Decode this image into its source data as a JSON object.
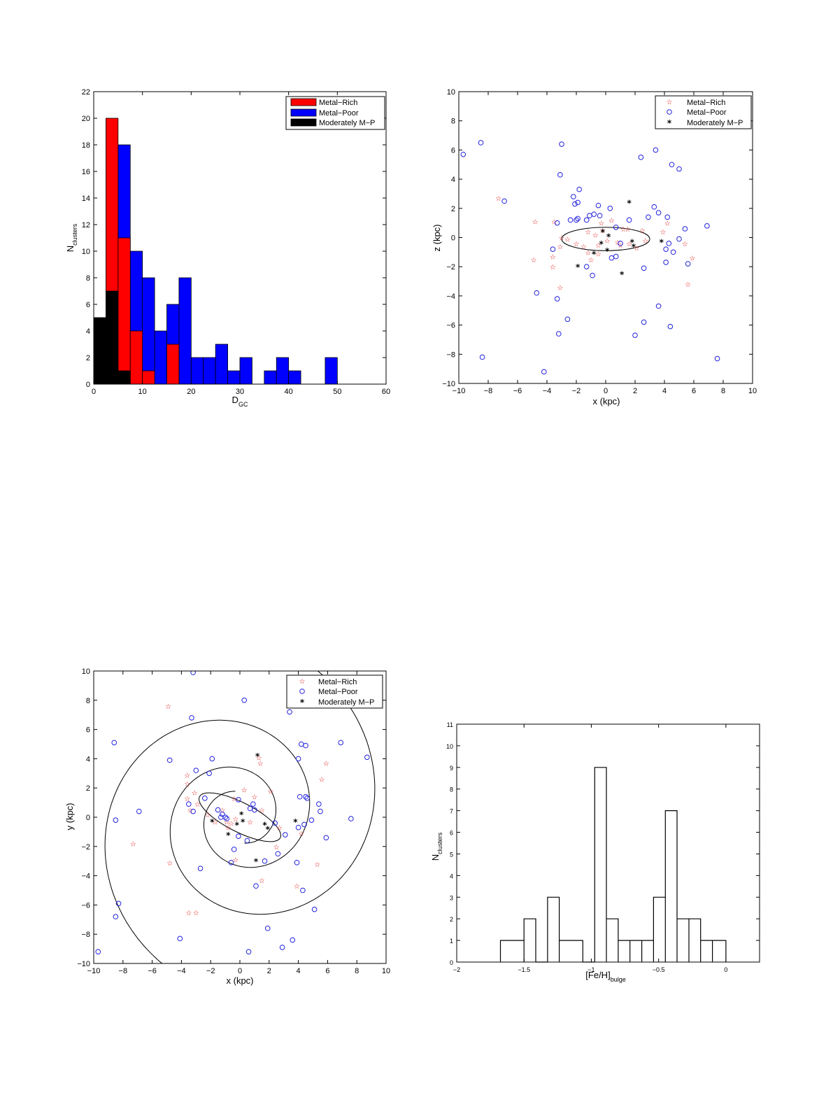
{
  "colors": {
    "metal_rich": "#ff0000",
    "metal_poor": "#0000ff",
    "moderate": "#000000",
    "star_red": "#e01010",
    "circle_blue": "#2222dd"
  },
  "chart_data": [
    {
      "type": "bar",
      "stacked_overlay": true,
      "xlabel": "D",
      "xlabel_sub": "GC",
      "ylabel": "N",
      "ylabel_sub": "clusters",
      "xlim": [
        0,
        60
      ],
      "ylim": [
        0,
        22
      ],
      "xticks": [
        0,
        10,
        20,
        30,
        40,
        50,
        60
      ],
      "yticks": [
        0,
        2,
        4,
        6,
        8,
        10,
        12,
        14,
        16,
        18,
        20,
        22
      ],
      "bin_width": 2.5,
      "legend": [
        "Metal−Rich",
        "Metal−Poor",
        "Moderately M−P"
      ],
      "legend_position": "top-right",
      "series": [
        {
          "name": "Metal−Poor",
          "color": "#0000ff",
          "bins": [
            [
              5,
              18
            ],
            [
              7.5,
              10
            ],
            [
              10,
              8
            ],
            [
              12.5,
              4
            ],
            [
              15,
              6
            ],
            [
              17.5,
              8
            ],
            [
              20,
              2
            ],
            [
              22.5,
              2
            ],
            [
              25,
              3
            ],
            [
              27.5,
              1
            ],
            [
              30,
              2
            ],
            [
              35,
              1
            ],
            [
              37.5,
              2
            ],
            [
              40,
              1
            ],
            [
              47.5,
              2
            ]
          ]
        },
        {
          "name": "Metal−Rich",
          "color": "#ff0000",
          "bins": [
            [
              0,
              5
            ],
            [
              2.5,
              20
            ],
            [
              5,
              11
            ],
            [
              7.5,
              4
            ],
            [
              10,
              1
            ],
            [
              15,
              3
            ]
          ]
        },
        {
          "name": "Moderately M−P",
          "color": "#000000",
          "bins": [
            [
              0,
              5
            ],
            [
              2.5,
              7
            ],
            [
              5,
              1
            ]
          ]
        }
      ]
    },
    {
      "type": "scatter",
      "xlabel": "x (kpc)",
      "ylabel": "z (kpc)",
      "xlim": [
        -10,
        10
      ],
      "ylim": [
        -10,
        10
      ],
      "xticks": [
        -10,
        -8,
        -6,
        -4,
        -2,
        0,
        2,
        4,
        6,
        8,
        10
      ],
      "yticks": [
        -10,
        -8,
        -6,
        -4,
        -2,
        0,
        2,
        4,
        6,
        8,
        10
      ],
      "legend": [
        "Metal−Rich",
        "Metal−Poor",
        "Moderately M−P"
      ],
      "legend_position": "top-right",
      "ellipse": {
        "cx": 0,
        "cy": -0.1,
        "rx": 3,
        "ry": 0.8
      },
      "series": [
        {
          "name": "Metal−Rich",
          "marker": "star",
          "points": [
            [
              -7.3,
              2.7
            ],
            [
              -4.8,
              1.1
            ],
            [
              -3.5,
              1.1
            ],
            [
              -4.9,
              -1.5
            ],
            [
              -3.6,
              -1.3
            ],
            [
              -3.6,
              -2
            ],
            [
              -3.1,
              -0.6
            ],
            [
              -3.1,
              -3.4
            ],
            [
              -3,
              0
            ],
            [
              -2.6,
              -0.1
            ],
            [
              -2,
              -0.4
            ],
            [
              -1.5,
              -0.6
            ],
            [
              -1.2,
              -1
            ],
            [
              -1.2,
              0.4
            ],
            [
              -1.0,
              -1.5
            ],
            [
              -0.7,
              0.2
            ],
            [
              -0.5,
              -0.5
            ],
            [
              -0.5,
              -1.1
            ],
            [
              -0.3,
              1.0
            ],
            [
              -0.2,
              0.5
            ],
            [
              0.1,
              -0.2
            ],
            [
              0.4,
              1.2
            ],
            [
              0.8,
              -0.3
            ],
            [
              1.0,
              -0.5
            ],
            [
              1.2,
              0.6
            ],
            [
              1.5,
              0.6
            ],
            [
              1.6,
              -0.4
            ],
            [
              2.1,
              -0.7
            ],
            [
              2.5,
              0.5
            ],
            [
              2.7,
              -0.2
            ],
            [
              3.9,
              0.4
            ],
            [
              4.2,
              1.0
            ],
            [
              5.4,
              -0.4
            ],
            [
              5.6,
              -3.2
            ],
            [
              5.9,
              -1.4
            ]
          ]
        },
        {
          "name": "Metal−Poor",
          "marker": "circle",
          "points": [
            [
              -9.7,
              5.7
            ],
            [
              -8.5,
              6.5
            ],
            [
              -8.4,
              -8.2
            ],
            [
              -6.9,
              2.5
            ],
            [
              -4.7,
              -3.8
            ],
            [
              -4.2,
              -9.2
            ],
            [
              -3.6,
              -0.8
            ],
            [
              -3.3,
              1.0
            ],
            [
              -3.3,
              -4.2
            ],
            [
              -3.2,
              -6.6
            ],
            [
              -3.1,
              4.3
            ],
            [
              -3.0,
              6.4
            ],
            [
              -2.6,
              -5.6
            ],
            [
              -2.4,
              1.2
            ],
            [
              -2.2,
              2.8
            ],
            [
              -2.1,
              2.3
            ],
            [
              -2.0,
              1.2
            ],
            [
              -1.9,
              1.3
            ],
            [
              -1.9,
              2.4
            ],
            [
              -1.8,
              3.3
            ],
            [
              -1.3,
              1.2
            ],
            [
              -1.3,
              -2
            ],
            [
              -1.1,
              1.5
            ],
            [
              -0.9,
              -2.6
            ],
            [
              -0.8,
              1.6
            ],
            [
              -0.5,
              2.2
            ],
            [
              -0.4,
              1.5
            ],
            [
              0.3,
              2.0
            ],
            [
              0.4,
              -1.4
            ],
            [
              0.7,
              0.7
            ],
            [
              0.7,
              -1.3
            ],
            [
              1.0,
              -0.4
            ],
            [
              1.6,
              1.2
            ],
            [
              2.0,
              -6.7
            ],
            [
              2.4,
              5.5
            ],
            [
              2.6,
              -2.1
            ],
            [
              2.6,
              -5.8
            ],
            [
              2.9,
              1.4
            ],
            [
              3.3,
              2.1
            ],
            [
              3.4,
              6.0
            ],
            [
              3.6,
              1.7
            ],
            [
              3.6,
              -4.7
            ],
            [
              4.1,
              -0.8
            ],
            [
              4.1,
              -1.7
            ],
            [
              4.2,
              1.4
            ],
            [
              4.3,
              -0.4
            ],
            [
              4.4,
              -6.1
            ],
            [
              4.5,
              5.0
            ],
            [
              4.6,
              -1
            ],
            [
              5.0,
              4.7
            ],
            [
              5.0,
              -0.1
            ],
            [
              5.4,
              0.6
            ],
            [
              5.6,
              -1.8
            ],
            [
              6.9,
              0.8
            ],
            [
              7.6,
              -8.3
            ]
          ]
        },
        {
          "name": "Moderately M−P",
          "marker": "asterisk",
          "points": [
            [
              -1.9,
              -1.9
            ],
            [
              -0.8,
              -1
            ],
            [
              -0.3,
              -0.3
            ],
            [
              -0.2,
              0.5
            ],
            [
              0.1,
              -0.8
            ],
            [
              0.2,
              0.2
            ],
            [
              1.1,
              -2.4
            ],
            [
              1.6,
              2.5
            ],
            [
              1.8,
              -0.2
            ],
            [
              1.9,
              -0.5
            ],
            [
              3.8,
              -0.2
            ]
          ]
        }
      ]
    },
    {
      "type": "scatter",
      "xlabel": "x (kpc)",
      "ylabel": "y (kpc)",
      "xlim": [
        -10,
        10
      ],
      "ylim": [
        -10,
        10
      ],
      "xticks": [
        -10,
        -8,
        -6,
        -4,
        -2,
        0,
        2,
        4,
        6,
        8,
        10
      ],
      "yticks": [
        -10,
        -8,
        -6,
        -4,
        -2,
        0,
        2,
        4,
        6,
        8,
        10
      ],
      "legend": [
        "Metal−Rich",
        "Metal−Poor",
        "Moderately M−P"
      ],
      "legend_position": "top-right",
      "ellipse": {
        "cx": 0,
        "cy": 0,
        "rx": 3.1,
        "ry": 1.0,
        "angle_deg": -27
      },
      "spiral": {
        "arms": 2,
        "a": 1.8,
        "b": 0.21,
        "rmax": 16,
        "phase_deg": 100
      },
      "series": [
        {
          "name": "Metal−Rich",
          "marker": "star",
          "points": [
            [
              -7.3,
              -1.8
            ],
            [
              -4.9,
              7.6
            ],
            [
              -4.8,
              -3.1
            ],
            [
              -3.6,
              2.9
            ],
            [
              -3.6,
              2.3
            ],
            [
              -3.6,
              1.3
            ],
            [
              -3.5,
              -6.5
            ],
            [
              -3.4,
              0.5
            ],
            [
              -3.1,
              1.7
            ],
            [
              -3.0,
              -6.5
            ],
            [
              -2.9,
              0.9
            ],
            [
              -2.2,
              0.2
            ],
            [
              -1.7,
              -0.3
            ],
            [
              -1.2,
              0.5
            ],
            [
              -0.9,
              -0.3
            ],
            [
              -0.8,
              -0.7
            ],
            [
              -0.6,
              -0.4
            ],
            [
              -0.4,
              1.3
            ],
            [
              -0.3,
              -0.1
            ],
            [
              -0.3,
              -2.9
            ],
            [
              0.3,
              1.9
            ],
            [
              0.7,
              -0.3
            ],
            [
              1.0,
              1.4
            ],
            [
              1.3,
              4.1
            ],
            [
              1.4,
              3.7
            ],
            [
              1.5,
              0.5
            ],
            [
              1.5,
              -4.3
            ],
            [
              2.1,
              1.8
            ],
            [
              2.5,
              -2
            ],
            [
              2.7,
              -0.7
            ],
            [
              3.9,
              -4.7
            ],
            [
              4.2,
              -1.1
            ],
            [
              5.3,
              -3.2
            ],
            [
              5.6,
              2.6
            ],
            [
              5.9,
              3.7
            ]
          ]
        },
        {
          "name": "Metal−Poor",
          "marker": "circle",
          "points": [
            [
              -9.7,
              -9.2
            ],
            [
              -8.6,
              5.1
            ],
            [
              -8.5,
              -0.2
            ],
            [
              -8.5,
              -6.8
            ],
            [
              -8.3,
              -5.9
            ],
            [
              -6.9,
              0.4
            ],
            [
              -4.8,
              3.9
            ],
            [
              -4.1,
              -8.3
            ],
            [
              -3.5,
              0.9
            ],
            [
              -3.3,
              6.8
            ],
            [
              -3.2,
              9.9
            ],
            [
              -3.2,
              0.4
            ],
            [
              -3.0,
              3.2
            ],
            [
              -2.7,
              -3.5
            ],
            [
              -2.4,
              1.3
            ],
            [
              -2.1,
              3.0
            ],
            [
              -1.9,
              4.0
            ],
            [
              -1.5,
              0.5
            ],
            [
              -1.3,
              0.0
            ],
            [
              -1.2,
              0.2
            ],
            [
              -1.0,
              0.0
            ],
            [
              -0.9,
              -0.1
            ],
            [
              -0.6,
              -3.1
            ],
            [
              -0.4,
              -2.2
            ],
            [
              -0.1,
              1.2
            ],
            [
              -0.1,
              -1.3
            ],
            [
              0.3,
              8.0
            ],
            [
              0.5,
              -1.6
            ],
            [
              0.6,
              -9.2
            ],
            [
              0.7,
              0.6
            ],
            [
              0.9,
              0.9
            ],
            [
              1.0,
              0.5
            ],
            [
              1.1,
              -4.7
            ],
            [
              1.7,
              -3.0
            ],
            [
              1.9,
              -7.6
            ],
            [
              2.4,
              -0.4
            ],
            [
              2.6,
              -2.5
            ],
            [
              2.9,
              -8.9
            ],
            [
              3.1,
              -1.2
            ],
            [
              3.4,
              7.2
            ],
            [
              3.6,
              -8.4
            ],
            [
              3.9,
              -3.1
            ],
            [
              4.0,
              -0.7
            ],
            [
              4.0,
              4.0
            ],
            [
              4.1,
              1.4
            ],
            [
              4.2,
              5.0
            ],
            [
              4.3,
              -5.0
            ],
            [
              4.4,
              -0.5
            ],
            [
              4.5,
              1.4
            ],
            [
              4.5,
              4.9
            ],
            [
              4.6,
              1.3
            ],
            [
              4.9,
              -0.2
            ],
            [
              5.1,
              -6.3
            ],
            [
              5.4,
              0.9
            ],
            [
              5.5,
              0.4
            ],
            [
              5.9,
              -1.4
            ],
            [
              6.9,
              5.1
            ],
            [
              7.6,
              -0.1
            ],
            [
              8.7,
              4.1
            ]
          ]
        },
        {
          "name": "Moderately M−P",
          "marker": "asterisk",
          "points": [
            [
              -1.9,
              -0.2
            ],
            [
              -0.8,
              -1.1
            ],
            [
              -0.2,
              -0.4
            ],
            [
              0.1,
              0.3
            ],
            [
              0.2,
              -0.2
            ],
            [
              1.1,
              -2.9
            ],
            [
              1.2,
              4.3
            ],
            [
              1.7,
              -0.4
            ],
            [
              1.9,
              -0.7
            ],
            [
              3.8,
              -0.2
            ]
          ]
        }
      ]
    },
    {
      "type": "bar",
      "style": "step-outline",
      "xlabel": "[Fe/H]",
      "xlabel_sub": "bulge",
      "ylabel": "N",
      "ylabel_sub": "clusters",
      "xlim": [
        -2,
        0.25
      ],
      "ylim": [
        0,
        11
      ],
      "xticks": [
        -2,
        -1.5,
        -1,
        -0.5,
        0
      ],
      "xtick_labels": [
        "−2",
        "−1.5",
        "−1",
        "−0.5",
        "0"
      ],
      "yticks": [
        0,
        1,
        2,
        3,
        4,
        5,
        6,
        7,
        8,
        9,
        10,
        11
      ],
      "edges": [
        -1.675,
        -1.5,
        -1.413,
        -1.325,
        -1.238,
        -1.063,
        -0.975,
        -0.888,
        -0.8,
        -0.713,
        -0.625,
        -0.538,
        -0.45,
        -0.363,
        -0.275,
        -0.188,
        -0.1,
        0
      ],
      "values": [
        1,
        2,
        0,
        3,
        1,
        0,
        9,
        2,
        1,
        1,
        1,
        3,
        7,
        2,
        2,
        1,
        1
      ]
    }
  ]
}
